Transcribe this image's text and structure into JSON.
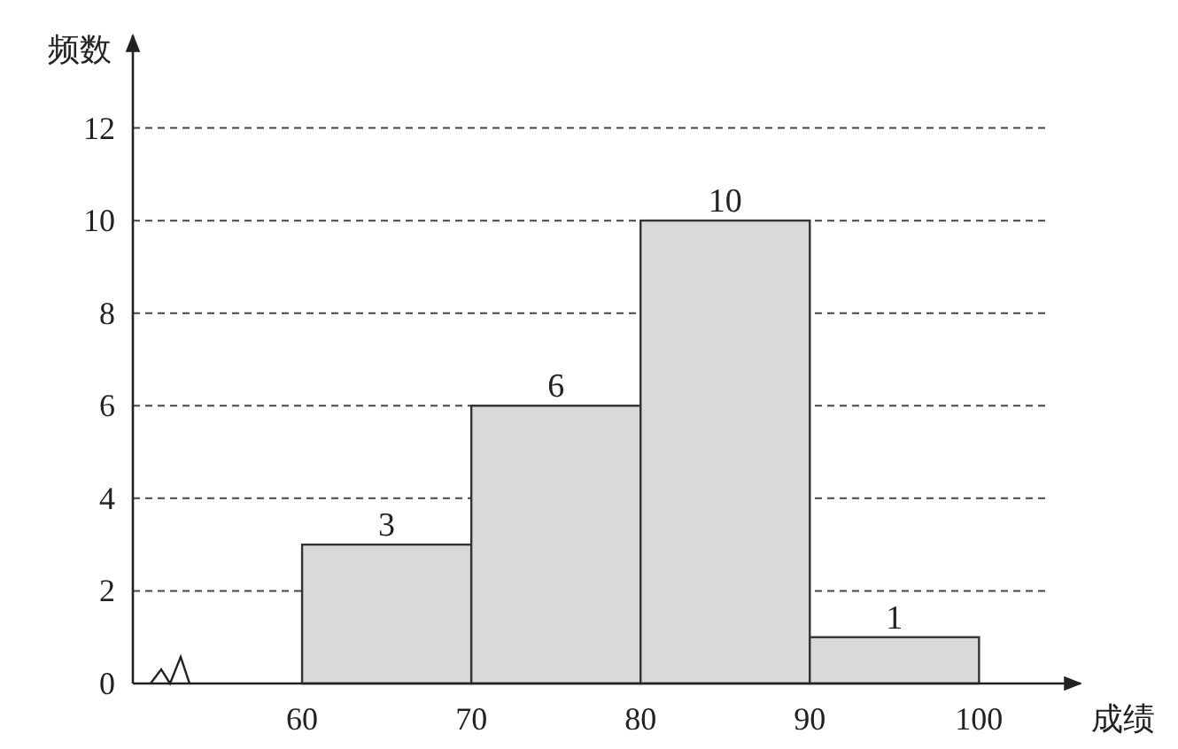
{
  "chart_data": {
    "type": "histogram",
    "xlabel": "成绩",
    "ylabel": "频数",
    "bins": [
      60,
      70,
      80,
      90,
      100
    ],
    "values": [
      3,
      6,
      10,
      1
    ],
    "color": "#d9d9d9",
    "xlim": [
      50,
      106
    ],
    "xticks": [
      60,
      70,
      80,
      90,
      100
    ],
    "ylim": [
      0,
      14
    ],
    "yticks": [
      0,
      2,
      4,
      6,
      8,
      10,
      12
    ],
    "grid": "y",
    "data_labels": true
  }
}
